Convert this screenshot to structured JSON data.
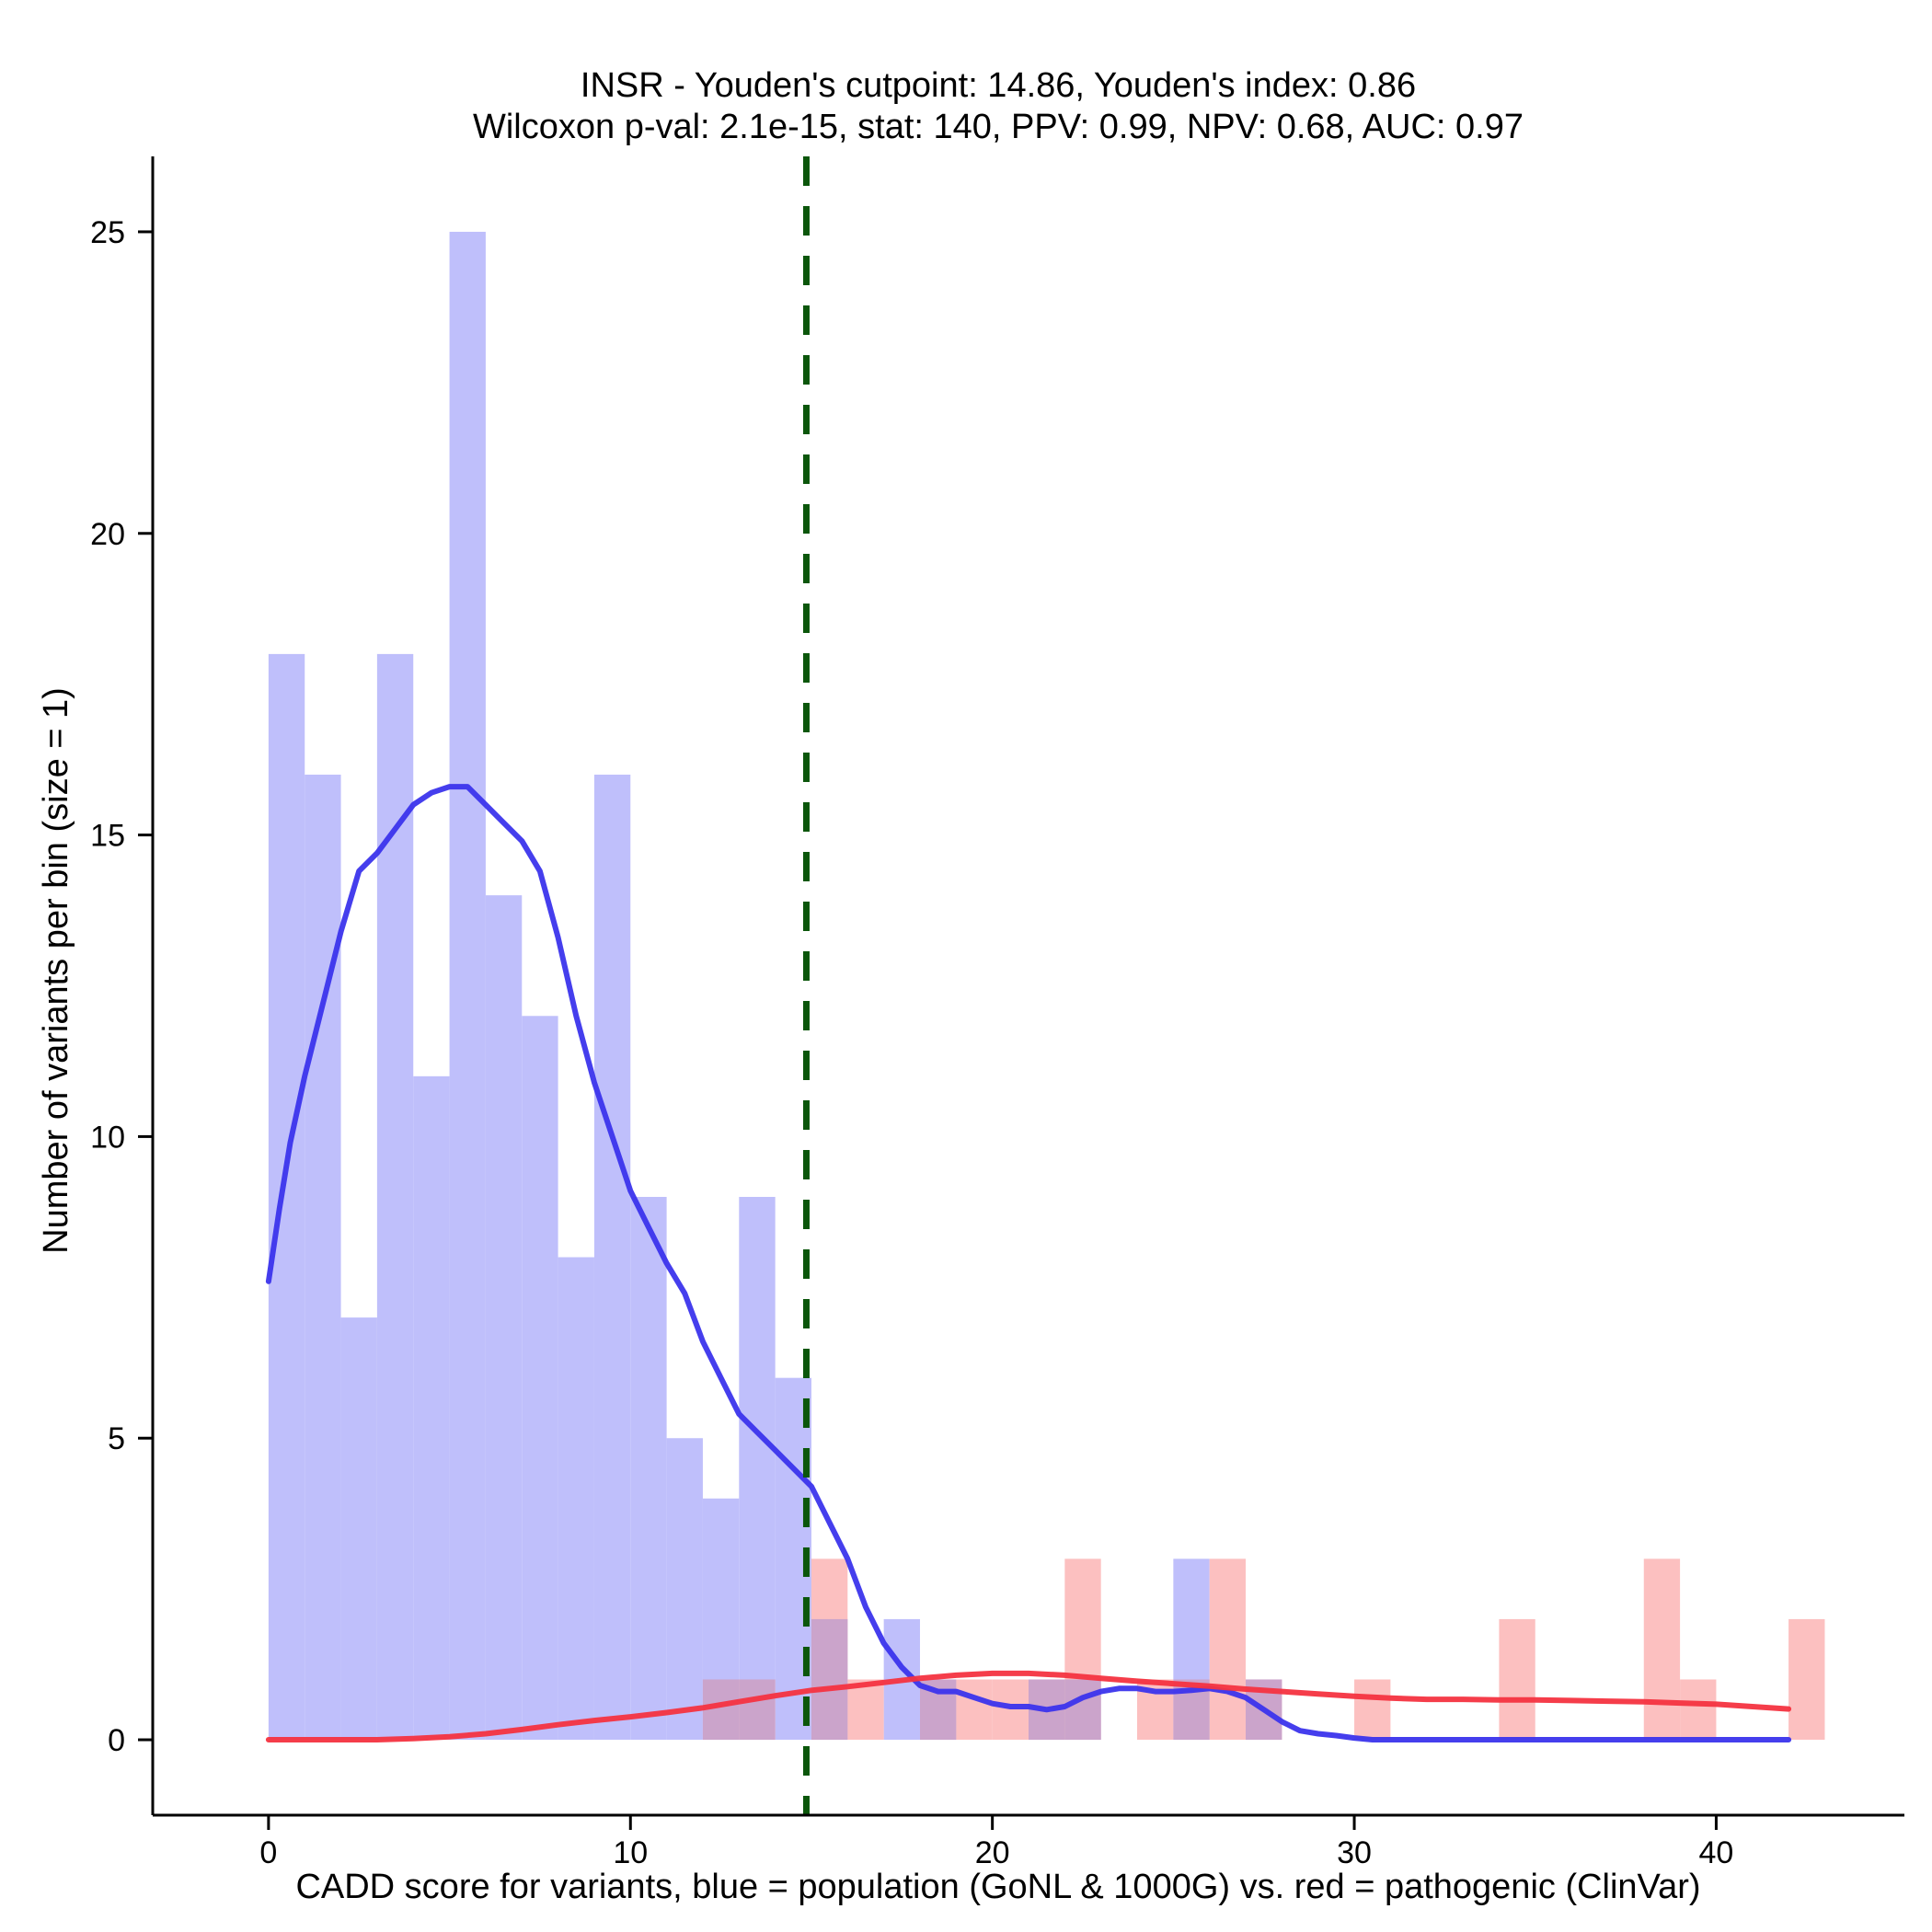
{
  "chart_data": {
    "type": "histogram",
    "title_line1": "INSR - Youden's cutpoint: 14.86, Youden's index: 0.86",
    "title_line2": "Wilcoxon p-val: 2.1e-15, stat: 140, PPV: 0.99, NPV: 0.68, AUC: 0.97",
    "xlabel": "CADD score for variants, blue = population (GoNL & 1000G) vs. red = pathogenic (ClinVar)",
    "ylabel": "Number of variants per bin (size = 1)",
    "xlim": [
      -3.2,
      45.2
    ],
    "ylim": [
      -1.25,
      26.25
    ],
    "xticks": [
      0,
      10,
      20,
      30,
      40
    ],
    "yticks": [
      0,
      5,
      10,
      15,
      20,
      25
    ],
    "bin_width": 1,
    "cutpoint": 14.86,
    "colors": {
      "population_bar": "#bfbffb",
      "pathogenic_bar": "#fcc0c0",
      "overlap_bar": "#cba4cb",
      "population_line": "#3b34ec",
      "pathogenic_line": "#f43340",
      "cutpoint_line": "#0b560b"
    },
    "series": [
      {
        "name": "population (GoNL & 1000G)",
        "bins": [
          {
            "x": 0,
            "count": 18
          },
          {
            "x": 1,
            "count": 16
          },
          {
            "x": 2,
            "count": 7
          },
          {
            "x": 3,
            "count": 18
          },
          {
            "x": 4,
            "count": 11
          },
          {
            "x": 5,
            "count": 25
          },
          {
            "x": 6,
            "count": 14
          },
          {
            "x": 7,
            "count": 12
          },
          {
            "x": 8,
            "count": 8
          },
          {
            "x": 9,
            "count": 16
          },
          {
            "x": 10,
            "count": 9
          },
          {
            "x": 11,
            "count": 5
          },
          {
            "x": 12,
            "count": 4
          },
          {
            "x": 13,
            "count": 9
          },
          {
            "x": 14,
            "count": 6
          },
          {
            "x": 15,
            "count": 2
          },
          {
            "x": 17,
            "count": 2
          },
          {
            "x": 18,
            "count": 1
          },
          {
            "x": 21,
            "count": 1
          },
          {
            "x": 22,
            "count": 1
          },
          {
            "x": 25,
            "count": 3
          },
          {
            "x": 27,
            "count": 1
          }
        ],
        "density_curve": [
          [
            0.0,
            7.6
          ],
          [
            0.3,
            8.8
          ],
          [
            0.6,
            9.9
          ],
          [
            1.0,
            11.0
          ],
          [
            1.5,
            12.2
          ],
          [
            2.0,
            13.4
          ],
          [
            2.5,
            14.4
          ],
          [
            3.0,
            14.7
          ],
          [
            3.5,
            15.1
          ],
          [
            4.0,
            15.5
          ],
          [
            4.5,
            15.7
          ],
          [
            5.0,
            15.8
          ],
          [
            5.5,
            15.8
          ],
          [
            6.0,
            15.5
          ],
          [
            6.5,
            15.2
          ],
          [
            7.0,
            14.9
          ],
          [
            7.5,
            14.4
          ],
          [
            8.0,
            13.3
          ],
          [
            8.5,
            12.0
          ],
          [
            9.0,
            10.9
          ],
          [
            9.5,
            10.0
          ],
          [
            10.0,
            9.1
          ],
          [
            10.5,
            8.5
          ],
          [
            11.0,
            7.9
          ],
          [
            11.5,
            7.4
          ],
          [
            12.0,
            6.6
          ],
          [
            12.5,
            6.0
          ],
          [
            13.0,
            5.4
          ],
          [
            13.5,
            5.1
          ],
          [
            14.0,
            4.8
          ],
          [
            14.5,
            4.5
          ],
          [
            15.0,
            4.2
          ],
          [
            15.5,
            3.6
          ],
          [
            16.0,
            3.0
          ],
          [
            16.5,
            2.2
          ],
          [
            17.0,
            1.6
          ],
          [
            17.5,
            1.2
          ],
          [
            18.0,
            0.9
          ],
          [
            18.5,
            0.8
          ],
          [
            19.0,
            0.8
          ],
          [
            19.5,
            0.7
          ],
          [
            20.0,
            0.6
          ],
          [
            20.5,
            0.55
          ],
          [
            21.0,
            0.55
          ],
          [
            21.5,
            0.5
          ],
          [
            22.0,
            0.55
          ],
          [
            22.5,
            0.7
          ],
          [
            23.0,
            0.8
          ],
          [
            23.5,
            0.85
          ],
          [
            24.0,
            0.85
          ],
          [
            24.5,
            0.8
          ],
          [
            25.0,
            0.8
          ],
          [
            25.5,
            0.82
          ],
          [
            26.0,
            0.85
          ],
          [
            26.5,
            0.8
          ],
          [
            27.0,
            0.7
          ],
          [
            27.5,
            0.5
          ],
          [
            28.0,
            0.3
          ],
          [
            28.5,
            0.15
          ],
          [
            29.0,
            0.1
          ],
          [
            29.5,
            0.07
          ],
          [
            30.0,
            0.03
          ],
          [
            30.5,
            0.0
          ],
          [
            31.0,
            0.0
          ],
          [
            35.0,
            0.0
          ],
          [
            40.0,
            0.0
          ],
          [
            42.0,
            0.0
          ]
        ]
      },
      {
        "name": "pathogenic (ClinVar)",
        "bins": [
          {
            "x": 12,
            "count": 1
          },
          {
            "x": 13,
            "count": 1
          },
          {
            "x": 15,
            "count": 3
          },
          {
            "x": 16,
            "count": 1
          },
          {
            "x": 18,
            "count": 1
          },
          {
            "x": 19,
            "count": 1
          },
          {
            "x": 20,
            "count": 1
          },
          {
            "x": 21,
            "count": 1
          },
          {
            "x": 22,
            "count": 3
          },
          {
            "x": 24,
            "count": 1
          },
          {
            "x": 25,
            "count": 1
          },
          {
            "x": 26,
            "count": 3
          },
          {
            "x": 27,
            "count": 1
          },
          {
            "x": 30,
            "count": 1
          },
          {
            "x": 34,
            "count": 2
          },
          {
            "x": 38,
            "count": 3
          },
          {
            "x": 39,
            "count": 1
          },
          {
            "x": 42,
            "count": 2
          }
        ],
        "density_curve": [
          [
            0.0,
            0.0
          ],
          [
            2.0,
            0.0
          ],
          [
            3.0,
            0.0
          ],
          [
            4.0,
            0.02
          ],
          [
            5.0,
            0.05
          ],
          [
            6.0,
            0.1
          ],
          [
            7.0,
            0.17
          ],
          [
            8.0,
            0.25
          ],
          [
            9.0,
            0.32
          ],
          [
            10.0,
            0.38
          ],
          [
            11.0,
            0.45
          ],
          [
            12.0,
            0.53
          ],
          [
            13.0,
            0.63
          ],
          [
            14.0,
            0.73
          ],
          [
            15.0,
            0.82
          ],
          [
            16.0,
            0.88
          ],
          [
            17.0,
            0.95
          ],
          [
            18.0,
            1.02
          ],
          [
            19.0,
            1.07
          ],
          [
            20.0,
            1.1
          ],
          [
            21.0,
            1.1
          ],
          [
            22.0,
            1.07
          ],
          [
            23.0,
            1.02
          ],
          [
            24.0,
            0.97
          ],
          [
            25.0,
            0.93
          ],
          [
            26.0,
            0.89
          ],
          [
            27.0,
            0.84
          ],
          [
            28.0,
            0.8
          ],
          [
            29.0,
            0.76
          ],
          [
            30.0,
            0.72
          ],
          [
            31.0,
            0.69
          ],
          [
            32.0,
            0.67
          ],
          [
            33.0,
            0.67
          ],
          [
            34.0,
            0.66
          ],
          [
            35.0,
            0.66
          ],
          [
            36.0,
            0.65
          ],
          [
            37.0,
            0.64
          ],
          [
            38.0,
            0.63
          ],
          [
            39.0,
            0.61
          ],
          [
            40.0,
            0.59
          ],
          [
            41.0,
            0.55
          ],
          [
            42.0,
            0.51
          ]
        ]
      }
    ]
  }
}
